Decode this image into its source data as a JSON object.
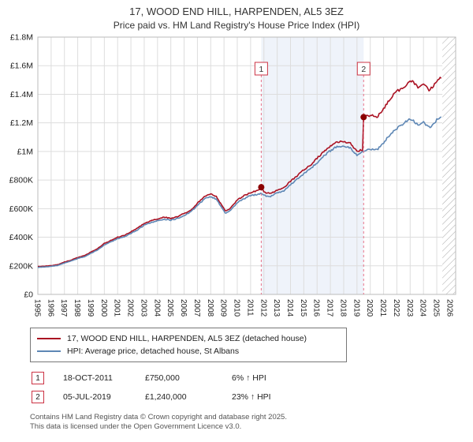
{
  "title": "17, WOOD END HILL, HARPENDEN, AL5 3EZ",
  "subtitle": "Price paid vs. HM Land Registry's House Price Index (HPI)",
  "chart_data": {
    "type": "line",
    "x_min": 1995,
    "x_max": 2026.42,
    "y_max": 1800000,
    "grid": true,
    "legend_position": "bottom",
    "y_ticks": [
      {
        "v": 0,
        "label": "£0"
      },
      {
        "v": 200000,
        "label": "£200K"
      },
      {
        "v": 400000,
        "label": "£400K"
      },
      {
        "v": 600000,
        "label": "£600K"
      },
      {
        "v": 800000,
        "label": "£800K"
      },
      {
        "v": 1000000,
        "label": "£1M"
      },
      {
        "v": 1200000,
        "label": "£1.2M"
      },
      {
        "v": 1400000,
        "label": "£1.4M"
      },
      {
        "v": 1600000,
        "label": "£1.6M"
      },
      {
        "v": 1800000,
        "label": "£1.8M"
      }
    ],
    "x_ticks": [
      1995,
      1996,
      1997,
      1998,
      1999,
      2000,
      2001,
      2002,
      2003,
      2004,
      2005,
      2006,
      2007,
      2008,
      2009,
      2010,
      2011,
      2012,
      2013,
      2014,
      2015,
      2016,
      2017,
      2018,
      2019,
      2020,
      2021,
      2022,
      2023,
      2024,
      2025,
      2026
    ],
    "shaded_region": [
      2011.8,
      2019.5
    ],
    "hatch_region": [
      2025.42,
      2026.42
    ],
    "colors": {
      "red": "#aa1122",
      "blue": "#5e87b5",
      "marker": "#8b0000",
      "dashed": "#e8738a",
      "shade": "rgba(100,140,210,0.10)",
      "box_border": "#cc3344",
      "grid": "#dddddd",
      "border": "#bbbbbb"
    },
    "series": [
      {
        "name": "17, WOOD END HILL, HARPENDEN, AL5 3EZ (detached house)",
        "color": "#aa1122",
        "points": [
          [
            1995,
            195000
          ],
          [
            1995.5,
            197000
          ],
          [
            1996,
            201000
          ],
          [
            1996.5,
            208000
          ],
          [
            1997,
            226000
          ],
          [
            1997.5,
            240000
          ],
          [
            1998,
            258000
          ],
          [
            1998.5,
            272000
          ],
          [
            1999,
            296000
          ],
          [
            1999.5,
            320000
          ],
          [
            2000,
            356000
          ],
          [
            2000.5,
            378000
          ],
          [
            2001,
            400000
          ],
          [
            2001.5,
            412000
          ],
          [
            2002,
            438000
          ],
          [
            2002.5,
            465000
          ],
          [
            2003,
            497000
          ],
          [
            2003.5,
            515000
          ],
          [
            2004,
            528000
          ],
          [
            2004.5,
            540000
          ],
          [
            2005,
            532000
          ],
          [
            2005.5,
            545000
          ],
          [
            2006,
            566000
          ],
          [
            2006.5,
            590000
          ],
          [
            2007,
            638000
          ],
          [
            2007.6,
            690000
          ],
          [
            2008,
            700000
          ],
          [
            2008.4,
            688000
          ],
          [
            2008.8,
            630000
          ],
          [
            2009.1,
            585000
          ],
          [
            2009.5,
            605000
          ],
          [
            2010,
            660000
          ],
          [
            2010.5,
            690000
          ],
          [
            2011,
            712000
          ],
          [
            2011.5,
            725000
          ],
          [
            2011.8,
            748000
          ],
          [
            2012,
            715000
          ],
          [
            2012.5,
            705000
          ],
          [
            2013,
            732000
          ],
          [
            2013.5,
            748000
          ],
          [
            2014,
            792000
          ],
          [
            2014.5,
            830000
          ],
          [
            2015,
            872000
          ],
          [
            2015.5,
            905000
          ],
          [
            2016,
            952000
          ],
          [
            2016.5,
            1000000
          ],
          [
            2017,
            1040000
          ],
          [
            2017.4,
            1065000
          ],
          [
            2018,
            1072000
          ],
          [
            2018.5,
            1058000
          ],
          [
            2019,
            1002000
          ],
          [
            2019.45,
            1012000
          ],
          [
            2019.5,
            1240000
          ],
          [
            2019.8,
            1248000
          ],
          [
            2020,
            1255000
          ],
          [
            2020.5,
            1240000
          ],
          [
            2021,
            1300000
          ],
          [
            2021.5,
            1372000
          ],
          [
            2022,
            1420000
          ],
          [
            2022.5,
            1448000
          ],
          [
            2023,
            1500000
          ],
          [
            2023.3,
            1480000
          ],
          [
            2023.6,
            1445000
          ],
          [
            2024,
            1478000
          ],
          [
            2024.4,
            1430000
          ],
          [
            2024.8,
            1460000
          ],
          [
            2025,
            1495000
          ],
          [
            2025.34,
            1515000
          ]
        ]
      },
      {
        "name": "HPI: Average price, detached house, St Albans",
        "color": "#5e87b5",
        "points": [
          [
            1995,
            190000
          ],
          [
            1995.5,
            192000
          ],
          [
            1996,
            196000
          ],
          [
            1996.5,
            203000
          ],
          [
            1997,
            220000
          ],
          [
            1997.5,
            234000
          ],
          [
            1998,
            251000
          ],
          [
            1998.5,
            264000
          ],
          [
            1999,
            288000
          ],
          [
            1999.5,
            311000
          ],
          [
            2000,
            346000
          ],
          [
            2000.5,
            368000
          ],
          [
            2001,
            390000
          ],
          [
            2001.5,
            401000
          ],
          [
            2002,
            427000
          ],
          [
            2002.5,
            452000
          ],
          [
            2003,
            484000
          ],
          [
            2003.5,
            502000
          ],
          [
            2004,
            515000
          ],
          [
            2004.5,
            527000
          ],
          [
            2005,
            519000
          ],
          [
            2005.5,
            531000
          ],
          [
            2006,
            552000
          ],
          [
            2006.5,
            576000
          ],
          [
            2007,
            622000
          ],
          [
            2007.6,
            672000
          ],
          [
            2008,
            681000
          ],
          [
            2008.4,
            668000
          ],
          [
            2008.8,
            612000
          ],
          [
            2009.1,
            568000
          ],
          [
            2009.5,
            588000
          ],
          [
            2010,
            642000
          ],
          [
            2010.5,
            670000
          ],
          [
            2011,
            690000
          ],
          [
            2011.5,
            700000
          ],
          [
            2011.8,
            706000
          ],
          [
            2012,
            692000
          ],
          [
            2012.5,
            684000
          ],
          [
            2013,
            710000
          ],
          [
            2013.5,
            726000
          ],
          [
            2014,
            768000
          ],
          [
            2014.5,
            805000
          ],
          [
            2015,
            845000
          ],
          [
            2015.5,
            878000
          ],
          [
            2016,
            922000
          ],
          [
            2016.5,
            968000
          ],
          [
            2017,
            1005000
          ],
          [
            2017.4,
            1030000
          ],
          [
            2018,
            1038000
          ],
          [
            2018.5,
            1024000
          ],
          [
            2019,
            972000
          ],
          [
            2019.5,
            1000000
          ],
          [
            2020,
            1018000
          ],
          [
            2020.5,
            1010000
          ],
          [
            2021,
            1062000
          ],
          [
            2021.5,
            1120000
          ],
          [
            2022,
            1160000
          ],
          [
            2022.5,
            1196000
          ],
          [
            2023,
            1228000
          ],
          [
            2023.3,
            1210000
          ],
          [
            2023.6,
            1185000
          ],
          [
            2024,
            1205000
          ],
          [
            2024.4,
            1168000
          ],
          [
            2024.8,
            1192000
          ],
          [
            2025,
            1225000
          ],
          [
            2025.34,
            1242000
          ]
        ]
      }
    ],
    "sales": [
      {
        "label": "1",
        "x": 2011.8,
        "price": 750000,
        "date": "18-OCT-2011"
      },
      {
        "label": "2",
        "x": 2019.5,
        "price": 1240000,
        "date": "05-JUL-2019"
      }
    ]
  },
  "legend": {
    "items": [
      {
        "label": "17, WOOD END HILL, HARPENDEN, AL5 3EZ (detached house)",
        "color": "#aa1122"
      },
      {
        "label": "HPI: Average price, detached house, St Albans",
        "color": "#5e87b5"
      }
    ]
  },
  "annotations": [
    {
      "num": "1",
      "date": "18-OCT-2011",
      "price": "£750,000",
      "hpi": "6% ↑ HPI"
    },
    {
      "num": "2",
      "date": "05-JUL-2019",
      "price": "£1,240,000",
      "hpi": "23% ↑ HPI"
    }
  ],
  "footer": {
    "line1": "Contains HM Land Registry data © Crown copyright and database right 2025.",
    "line2": "This data is licensed under the Open Government Licence v3.0."
  }
}
